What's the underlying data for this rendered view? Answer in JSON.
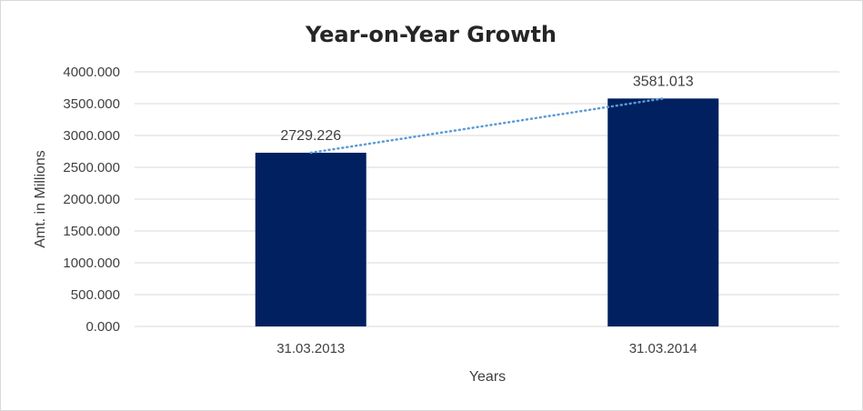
{
  "chart_data": {
    "type": "bar",
    "title": "Year-on-Year Growth",
    "xlabel": "Years",
    "ylabel": "Amt. in Millions",
    "categories": [
      "31.03.2013",
      "31.03.2014"
    ],
    "values": [
      2729.226,
      3581.013
    ],
    "data_labels": [
      "2729.226",
      "3581.013"
    ],
    "ylim": [
      0,
      4000
    ],
    "yticks": [
      "0.000",
      "500.000",
      "1000.000",
      "1500.000",
      "2000.000",
      "2500.000",
      "3000.000",
      "3500.000",
      "4000.000"
    ],
    "grid": true,
    "trendline": "linear",
    "bar_color": "#002060",
    "trendline_color": "#5b9bd5",
    "gridline_color": "#d9d9d9"
  }
}
